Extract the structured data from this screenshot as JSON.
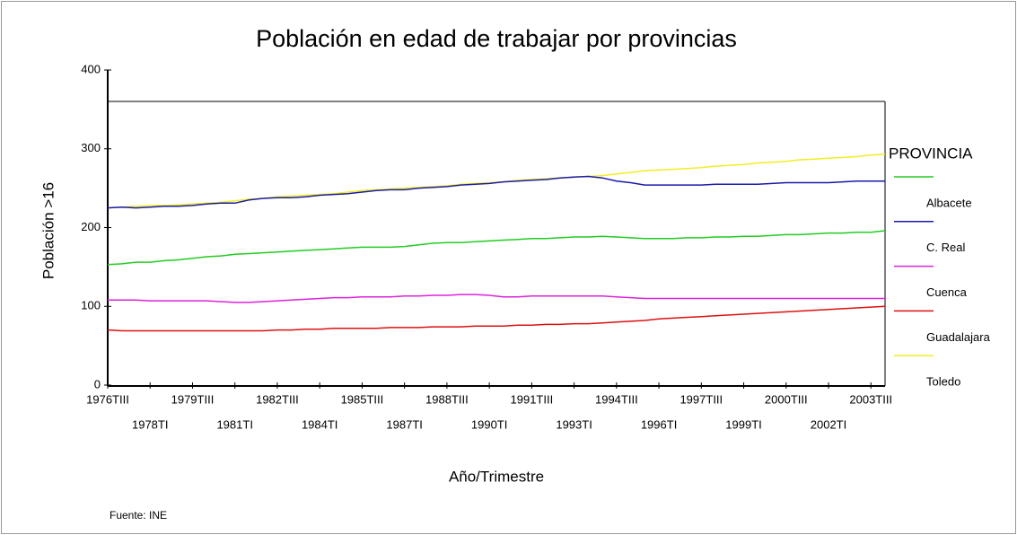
{
  "chart_data": {
    "type": "line",
    "title": "Población en edad de trabajar por provincias",
    "x_label": "Año/Trimestre",
    "y_label": "Población >16",
    "legend_title": "PROVINCIA",
    "annotation": "Fuente: INE",
    "legend": "right",
    "grid": false,
    "ylim": [
      0,
      400
    ],
    "yticks": [
      0,
      100,
      200,
      300,
      400
    ],
    "categories": [
      "1976TIII",
      null,
      null,
      "1978TI",
      null,
      null,
      "1979TIII",
      null,
      null,
      "1981TI",
      null,
      null,
      "1982TIII",
      null,
      null,
      "1984TI",
      null,
      null,
      "1985TIII",
      null,
      null,
      "1987TI",
      null,
      null,
      "1988TIII",
      null,
      null,
      "1990TI",
      null,
      null,
      "1991TIII",
      null,
      null,
      "1993TI",
      null,
      null,
      "1994TIII",
      null,
      null,
      "1996TI",
      null,
      null,
      "1997TIII",
      null,
      null,
      "1999TI",
      null,
      null,
      "2000TIII",
      null,
      null,
      "2002TI",
      null,
      null,
      "2003TIII",
      null
    ],
    "series": [
      {
        "name": "Albacete",
        "color": "#22cc22",
        "values": [
          153,
          154,
          156,
          156,
          158,
          159,
          161,
          163,
          164,
          166,
          167,
          168,
          169,
          170,
          171,
          172,
          173,
          174,
          175,
          175,
          175,
          176,
          178,
          180,
          181,
          181,
          182,
          183,
          184,
          185,
          186,
          186,
          187,
          188,
          188,
          189,
          188,
          187,
          186,
          186,
          186,
          187,
          187,
          188,
          188,
          189,
          189,
          190,
          191,
          191,
          192,
          193,
          193,
          194,
          194,
          196
        ]
      },
      {
        "name": "C. Real",
        "color": "#1a1aaa",
        "values": [
          225,
          226,
          225,
          226,
          227,
          227,
          228,
          230,
          231,
          231,
          235,
          237,
          238,
          238,
          239,
          241,
          242,
          243,
          245,
          247,
          248,
          248,
          250,
          251,
          252,
          254,
          255,
          256,
          258,
          259,
          260,
          261,
          263,
          264,
          265,
          263,
          259,
          257,
          254,
          254,
          254,
          254,
          254,
          255,
          255,
          255,
          255,
          256,
          257,
          257,
          257,
          257,
          258,
          259,
          259,
          259
        ]
      },
      {
        "name": "Cuenca",
        "color": "#dd22dd",
        "values": [
          108,
          108,
          108,
          107,
          107,
          107,
          107,
          107,
          106,
          105,
          105,
          106,
          107,
          108,
          109,
          110,
          111,
          111,
          112,
          112,
          112,
          113,
          113,
          114,
          114,
          115,
          115,
          114,
          112,
          112,
          113,
          113,
          113,
          113,
          113,
          113,
          112,
          111,
          110,
          110,
          110,
          110,
          110,
          110,
          110,
          110,
          110,
          110,
          110,
          110,
          110,
          110,
          110,
          110,
          110,
          110
        ]
      },
      {
        "name": "Guadalajara",
        "color": "#dd1111",
        "values": [
          70,
          69,
          69,
          69,
          69,
          69,
          69,
          69,
          69,
          69,
          69,
          69,
          70,
          70,
          71,
          71,
          72,
          72,
          72,
          72,
          73,
          73,
          73,
          74,
          74,
          74,
          75,
          75,
          75,
          76,
          76,
          77,
          77,
          78,
          78,
          79,
          80,
          81,
          82,
          84,
          85,
          86,
          87,
          88,
          89,
          90,
          91,
          92,
          93,
          94,
          95,
          96,
          97,
          98,
          99,
          100
        ]
      },
      {
        "name": "Toledo",
        "color": "#f2ee22",
        "values": [
          225,
          226,
          227,
          228,
          228,
          229,
          230,
          231,
          232,
          234,
          236,
          237,
          239,
          240,
          241,
          242,
          243,
          245,
          247,
          248,
          249,
          250,
          251,
          252,
          253,
          255,
          256,
          257,
          258,
          260,
          261,
          262,
          263,
          264,
          265,
          266,
          268,
          270,
          272,
          273,
          274,
          275,
          276,
          278,
          279,
          280,
          282,
          283,
          284,
          286,
          287,
          288,
          289,
          290,
          292,
          293
        ]
      }
    ]
  }
}
